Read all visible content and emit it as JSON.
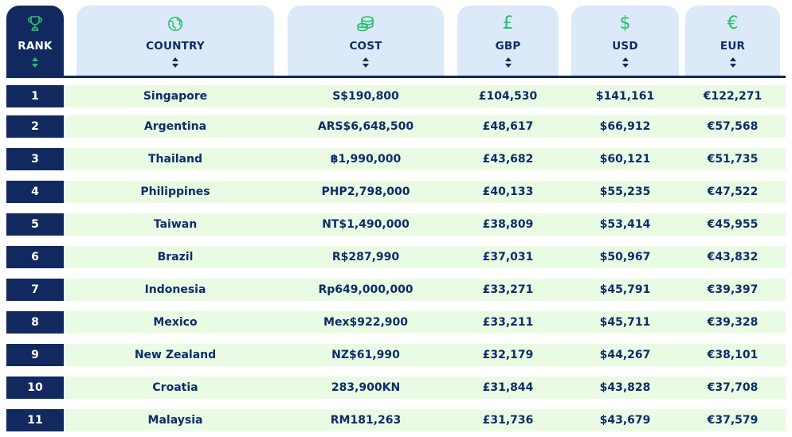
{
  "header": {
    "rank": "RANK",
    "country": "COUNTRY",
    "cost": "COST",
    "gbp": "GBP",
    "usd": "USD",
    "eur": "EUR",
    "gbp_symbol": "£",
    "usd_symbol": "$",
    "eur_symbol": "€"
  },
  "icons": {
    "rank": "trophy-icon",
    "country": "globe-icon",
    "cost": "coins-icon",
    "gbp": "pound-icon",
    "usd": "dollar-icon",
    "eur": "euro-icon"
  },
  "colors": {
    "navy": "#12295f",
    "header_light": "#dce9f8",
    "row_stripe": "#eafbe3",
    "accent_green": "#23c16b",
    "text": "#0b2d6b"
  },
  "rows": [
    {
      "rank": "1",
      "country": "Singapore",
      "cost": "S$190,800",
      "gbp": "£104,530",
      "usd": "$141,161",
      "eur": "€122,271"
    },
    {
      "rank": "2",
      "country": "Argentina",
      "cost": "ARS$6,648,500",
      "gbp": "£48,617",
      "usd": "$66,912",
      "eur": "€57,568"
    },
    {
      "rank": "3",
      "country": "Thailand",
      "cost": "฿1,990,000",
      "gbp": "£43,682",
      "usd": "$60,121",
      "eur": "€51,735"
    },
    {
      "rank": "4",
      "country": "Philippines",
      "cost": "PHP2,798,000",
      "gbp": "£40,133",
      "usd": "$55,235",
      "eur": "€47,522"
    },
    {
      "rank": "5",
      "country": "Taiwan",
      "cost": "NT$1,490,000",
      "gbp": "£38,809",
      "usd": "$53,414",
      "eur": "€45,955"
    },
    {
      "rank": "6",
      "country": "Brazil",
      "cost": "R$287,990",
      "gbp": "£37,031",
      "usd": "$50,967",
      "eur": "€43,832"
    },
    {
      "rank": "7",
      "country": "Indonesia",
      "cost": "Rp649,000,000",
      "gbp": "£33,271",
      "usd": "$45,791",
      "eur": "€39,397"
    },
    {
      "rank": "8",
      "country": "Mexico",
      "cost": "Mex$922,900",
      "gbp": "£33,211",
      "usd": "$45,711",
      "eur": "€39,328"
    },
    {
      "rank": "9",
      "country": "New Zealand",
      "cost": "NZ$61,990",
      "gbp": "£32,179",
      "usd": "$44,267",
      "eur": "€38,101"
    },
    {
      "rank": "10",
      "country": "Croatia",
      "cost": "283,900KN",
      "gbp": "£31,844",
      "usd": "$43,828",
      "eur": "€37,708"
    },
    {
      "rank": "11",
      "country": "Malaysia",
      "cost": "RM181,263",
      "gbp": "£31,736",
      "usd": "$43,679",
      "eur": "€37,579"
    }
  ]
}
